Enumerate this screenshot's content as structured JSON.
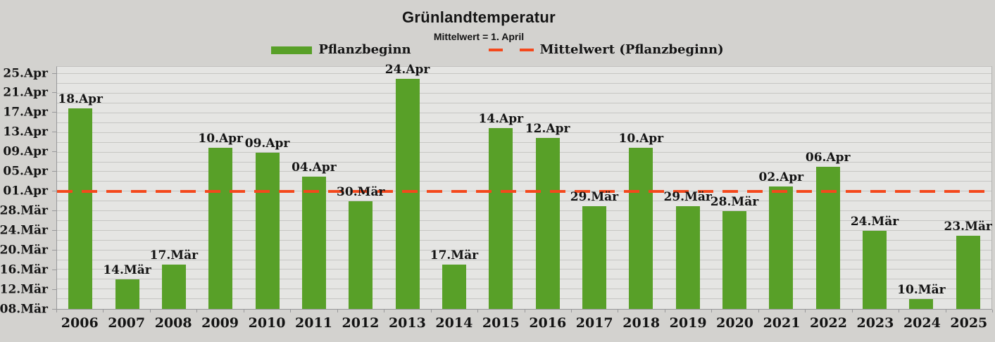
{
  "chart_data": {
    "type": "bar",
    "title": "Grünlandtemperatur",
    "subtitle": "Mittelwert = 1. April",
    "legend_position": "top",
    "grid": true,
    "colors": {
      "bar": "#58a028",
      "mean_line": "#f4481c",
      "page_bg": "#d3d2cf",
      "plot_bg": "#e5e5e3",
      "gridline": "#c6c6c3",
      "axis": "#98989a",
      "text": "#141414"
    },
    "categories": [
      "2006",
      "2007",
      "2008",
      "2009",
      "2010",
      "2011",
      "2012",
      "2013",
      "2014",
      "2015",
      "2016",
      "2017",
      "2018",
      "2019",
      "2020",
      "2021",
      "2022",
      "2023",
      "2024",
      "2025"
    ],
    "series": [
      {
        "name": "Pflanzbeginn",
        "color": "#58a028",
        "value_labels": [
          "18.Apr",
          "14.Mär",
          "17.Mär",
          "10.Apr",
          "09.Apr",
          "04.Apr",
          "30.Mär",
          "24.Apr",
          "17.Mär",
          "14.Apr",
          "12.Apr",
          "29.Mär",
          "10.Apr",
          "29.Mär",
          "28.Mär",
          "02.Apr",
          "06.Apr",
          "24.Mär",
          "10.Mär",
          "23.Mär"
        ],
        "values_days_after_08mar": [
          41,
          6,
          9,
          33,
          32,
          27,
          22,
          47,
          9,
          37,
          35,
          21,
          33,
          21,
          20,
          25,
          29,
          16,
          2,
          15
        ]
      }
    ],
    "mean_line": {
      "label": "Mittelwert (Pflanzbeginn)",
      "value": "01.Apr",
      "days_after_08mar": 24,
      "color": "#f4481c",
      "style": "dashed"
    },
    "y_axis": {
      "tick_labels": [
        "08.Mär",
        "12.Mär",
        "16.Mär",
        "20.Mär",
        "24.Mär",
        "28.Mär",
        "01.Apr",
        "05.Apr",
        "09.Apr",
        "13.Apr",
        "17.Apr",
        "21.Apr",
        "25.Apr"
      ],
      "tick_days": [
        0,
        4,
        8,
        12,
        16,
        20,
        24,
        28,
        32,
        36,
        40,
        44,
        48
      ],
      "minor_gridline_step_days": 2,
      "range_days": [
        0,
        49.5
      ]
    }
  }
}
